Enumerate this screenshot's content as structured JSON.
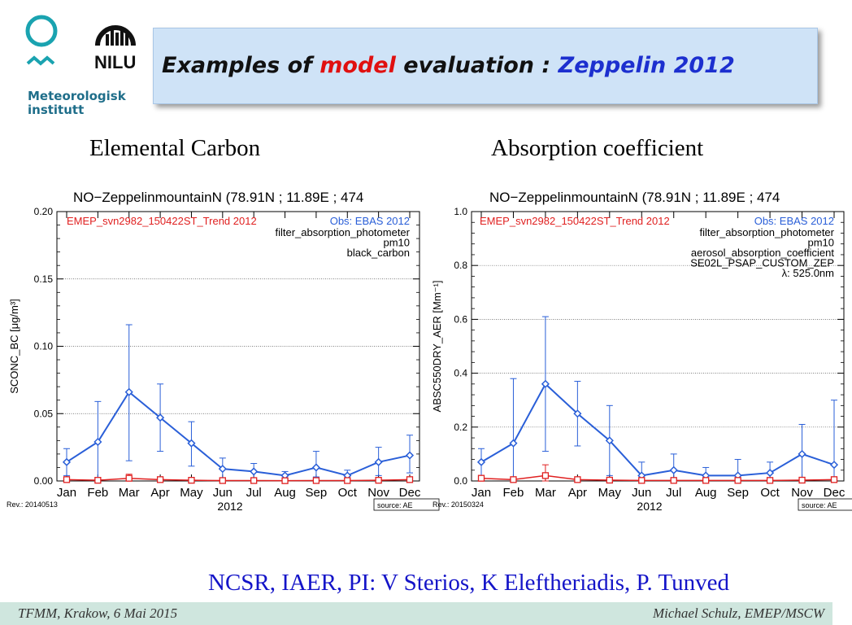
{
  "header": {
    "logo_left_text": "Meteorologisk institutt",
    "logo_right_text": "NILU",
    "title_part1": "Examples of ",
    "title_part2": "model",
    "title_part3": " evaluation : ",
    "title_part4": "Zeppelin 2012",
    "colors": {
      "title_box": "#cfe3f7",
      "model_word": "#e01010",
      "zeppelin_word": "#1c2fcf"
    }
  },
  "sections": {
    "left_label": "Elemental Carbon",
    "right_label": "Absorption coefficient"
  },
  "chart_data": [
    {
      "type": "line",
      "title": "NO−ZeppelinmountainN (78.91N ; 11.89E ; 474",
      "model_label": "EMEP_svn2982_150422ST_Trend 2012",
      "obs_label": "Obs: EBAS 2012",
      "info_lines": [
        "filter_absorption_photometer",
        "pm10",
        "black_carbon"
      ],
      "ylabel": "SCONC_BC [μg/m³]",
      "xlabel": "2012",
      "revision": "Rev.: 20140513",
      "source": "source: AE",
      "ylim": [
        0,
        0.2
      ],
      "yticks": [
        "0.00",
        "0.05",
        "0.10",
        "0.15",
        "0.20"
      ],
      "categories": [
        "Jan",
        "Feb",
        "Mar",
        "Apr",
        "May",
        "Jun",
        "Jul",
        "Aug",
        "Sep",
        "Oct",
        "Nov",
        "Dec"
      ],
      "series": [
        {
          "name": "Obs: EBAS 2012",
          "color": "#2a5fd8",
          "values": [
            0.014,
            0.029,
            0.066,
            0.047,
            0.028,
            0.009,
            0.007,
            0.004,
            0.01,
            0.004,
            0.014,
            0.019
          ],
          "err_low": [
            0.004,
            0.002,
            0.015,
            0.022,
            0.011,
            0.002,
            0.001,
            0.001,
            0.003,
            0.0005,
            0.004,
            0.006
          ],
          "err_high": [
            0.024,
            0.059,
            0.116,
            0.072,
            0.044,
            0.017,
            0.013,
            0.007,
            0.022,
            0.008,
            0.025,
            0.034
          ]
        },
        {
          "name": "EMEP_svn2982_150422ST_Trend 2012",
          "color": "#e02020",
          "values": [
            0.001,
            0.0005,
            0.002,
            0.001,
            0.0005,
            0.0003,
            0.0003,
            0.0002,
            0.0003,
            0.0003,
            0.0005,
            0.001
          ],
          "err_low": [
            0.0,
            0.0,
            0.0,
            0.0,
            0.0,
            0.0,
            0.0,
            0.0,
            0.0,
            0.0,
            0.0,
            0.0
          ],
          "err_high": [
            0.002,
            0.001,
            0.005,
            0.002,
            0.001,
            0.0005,
            0.0005,
            0.0004,
            0.0006,
            0.0006,
            0.001,
            0.002
          ]
        }
      ]
    },
    {
      "type": "line",
      "title": "NO−ZeppelinmountainN (78.91N ; 11.89E ; 474",
      "model_label": "EMEP_svn2982_150422ST_Trend 2012",
      "obs_label": "Obs: EBAS 2012",
      "info_lines": [
        "filter_absorption_photometer",
        "pm10",
        "aerosol_absorption_coefficient",
        "SE02L_PSAP_CUSTOM_ZEP",
        "λ: 525.0nm"
      ],
      "ylabel": "ABSC550DRY_AER [Mm⁻¹]",
      "xlabel": "2012",
      "revision": "Rev.: 20150324",
      "source": "source: AE",
      "ylim": [
        0,
        1.0
      ],
      "yticks": [
        "0.0",
        "0.2",
        "0.4",
        "0.6",
        "0.8",
        "1.0"
      ],
      "categories": [
        "Jan",
        "Feb",
        "Mar",
        "Apr",
        "May",
        "Jun",
        "Jul",
        "Aug",
        "Sep",
        "Oct",
        "Nov",
        "Dec"
      ],
      "series": [
        {
          "name": "Obs: EBAS 2012",
          "color": "#2a5fd8",
          "values": [
            0.07,
            0.14,
            0.36,
            0.25,
            0.15,
            0.02,
            0.04,
            0.02,
            0.02,
            0.03,
            0.1,
            0.06
          ],
          "err_low": [
            0.01,
            0.01,
            0.11,
            0.13,
            0.02,
            0.0,
            0.01,
            0.0,
            0.0,
            0.01,
            0.01,
            0.01
          ],
          "err_high": [
            0.12,
            0.38,
            0.61,
            0.37,
            0.28,
            0.07,
            0.1,
            0.05,
            0.08,
            0.07,
            0.21,
            0.3
          ]
        },
        {
          "name": "EMEP_svn2982_150422ST_Trend 2012",
          "color": "#e02020",
          "values": [
            0.01,
            0.005,
            0.02,
            0.005,
            0.003,
            0.002,
            0.002,
            0.002,
            0.002,
            0.002,
            0.003,
            0.005
          ],
          "err_low": [
            0.0,
            0.0,
            0.0,
            0.0,
            0.0,
            0.0,
            0.0,
            0.0,
            0.0,
            0.0,
            0.0,
            0.0
          ],
          "err_high": [
            0.02,
            0.01,
            0.06,
            0.01,
            0.006,
            0.004,
            0.004,
            0.004,
            0.004,
            0.004,
            0.006,
            0.01
          ]
        }
      ]
    }
  ],
  "credits": "NCSR, IAER, PI: V Sterios, K Eleftheriadis, P. Tunved",
  "footer": {
    "left": "TFMM, Krakow, 6 Mai 2015",
    "right": "Michael Schulz, EMEP/MSCW"
  }
}
